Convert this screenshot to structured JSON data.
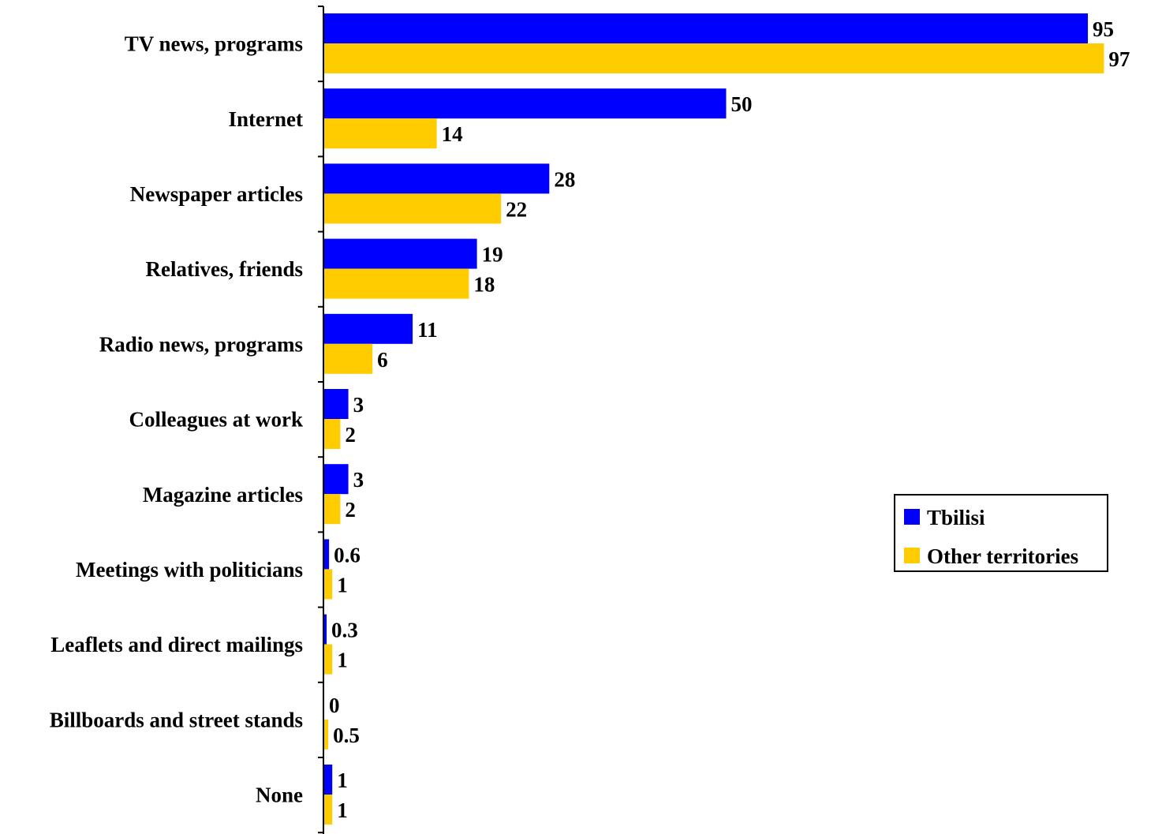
{
  "chart_data": {
    "type": "bar",
    "orientation": "horizontal",
    "title": "",
    "xlabel": "",
    "ylabel": "",
    "xlim": [
      0,
      100
    ],
    "grid": false,
    "legend_position": "right",
    "categories": [
      "TV news, programs",
      "Internet",
      "Newspaper articles",
      "Relatives, friends",
      "Radio news, programs",
      "Colleagues at work",
      "Magazine articles",
      "Meetings with politicians",
      "Leaflets and direct mailings",
      "Billboards and street stands",
      "None"
    ],
    "series": [
      {
        "name": "Tbilisi",
        "color": "#0000FF",
        "values": [
          95,
          50,
          28,
          19,
          11,
          3,
          3,
          0.6,
          0.3,
          0,
          1
        ],
        "labels": [
          "95",
          "50",
          "28",
          "19",
          "11",
          "3",
          "3",
          "0.6",
          "0.3",
          "0",
          "1"
        ]
      },
      {
        "name": "Other territories",
        "color": "#FFCC00",
        "values": [
          97,
          14,
          22,
          18,
          6,
          2,
          2,
          1,
          1,
          0.5,
          1
        ],
        "labels": [
          "97",
          "14",
          "22",
          "18",
          "6",
          "2",
          "2",
          "1",
          "1",
          "0.5",
          "1"
        ]
      }
    ]
  }
}
